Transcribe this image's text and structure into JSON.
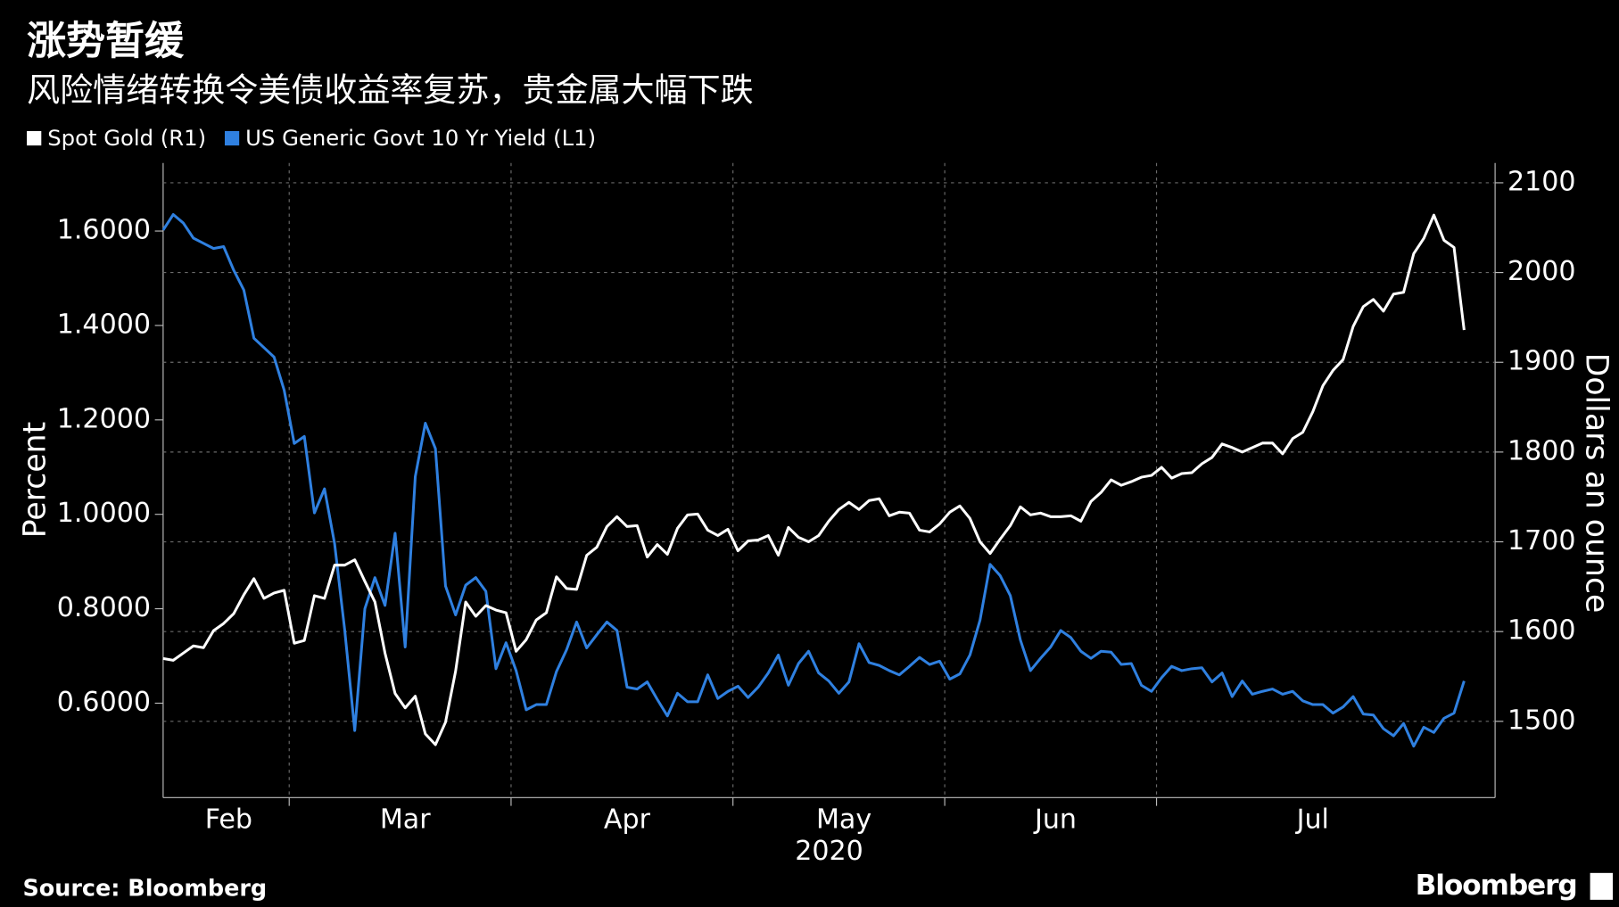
{
  "chart_data": {
    "type": "line",
    "title": "涨势暂缓",
    "subtitle": "风险情绪转换令美债收益率复苏，贵金属大幅下跌",
    "y_label": "Percent",
    "y2_label": "Dollars an ounce",
    "x_label": "2020",
    "source": "Source: Bloomberg",
    "brand": "Bloomberg",
    "grid": true,
    "categories": [
      "Feb",
      null,
      null,
      null,
      null,
      null,
      null,
      null,
      null,
      null,
      null,
      null,
      null,
      "Mar",
      null,
      null,
      null,
      null,
      null,
      null,
      null,
      null,
      null,
      null,
      null,
      null,
      null,
      null,
      null,
      null,
      null,
      null,
      null,
      null,
      null,
      "Apr",
      null,
      null,
      null,
      null,
      null,
      null,
      null,
      null,
      null,
      null,
      null,
      null,
      null,
      null,
      null,
      null,
      null,
      null,
      null,
      null,
      null,
      "May",
      null,
      null,
      null,
      null,
      null,
      null,
      null,
      null,
      null,
      null,
      null,
      null,
      null,
      null,
      null,
      null,
      null,
      null,
      null,
      null,
      "Jun",
      null,
      null,
      null,
      null,
      null,
      null,
      null,
      null,
      null,
      null,
      null,
      null,
      null,
      null,
      null,
      null,
      null,
      null,
      null,
      null,
      "Jul",
      null,
      null,
      null,
      null,
      null,
      null,
      null,
      null,
      null,
      null,
      null,
      null,
      null,
      null,
      null,
      null,
      null,
      null,
      null,
      null,
      null,
      null,
      null,
      null,
      null,
      null,
      null,
      null,
      null,
      null
    ],
    "series": [
      {
        "name": "Spot Gold (R1)",
        "color": "#ffffff",
        "axis": "y2",
        "values": [
          1570,
          1568,
          1576,
          1584,
          1582,
          1601,
          1609,
          1620,
          1641,
          1659,
          1637,
          1643,
          1646,
          1587,
          1590,
          1640,
          1637,
          1674,
          1674,
          1680,
          1656,
          1633,
          1576,
          1531,
          1515,
          1528,
          1486,
          1474,
          1499,
          1556,
          1633,
          1617,
          1629,
          1624,
          1621,
          1578,
          1591,
          1613,
          1621,
          1661,
          1648,
          1647,
          1685,
          1694,
          1717,
          1728,
          1717,
          1718,
          1683,
          1697,
          1686,
          1715,
          1730,
          1731,
          1713,
          1707,
          1714,
          1690,
          1701,
          1702,
          1707,
          1685,
          1716,
          1705,
          1700,
          1707,
          1723,
          1736,
          1744,
          1736,
          1746,
          1748,
          1729,
          1733,
          1732,
          1713,
          1711,
          1720,
          1733,
          1740,
          1726,
          1700,
          1687,
          1703,
          1718,
          1739,
          1730,
          1732,
          1728,
          1728,
          1729,
          1723,
          1745,
          1755,
          1769,
          1763,
          1767,
          1772,
          1774,
          1783,
          1771,
          1776,
          1777,
          1787,
          1794,
          1809,
          1805,
          1800,
          1805,
          1810,
          1810,
          1798,
          1815,
          1822,
          1845,
          1874,
          1891,
          1903,
          1940,
          1962,
          1970,
          1957,
          1976,
          1978,
          2021,
          2038,
          2064,
          2036,
          2028,
          1936
        ]
      },
      {
        "name": "US Generic Govt 10 Yr Yield (L1)",
        "color": "#2f80e0",
        "axis": "y",
        "values": [
          1.602,
          1.635,
          1.617,
          1.585,
          1.574,
          1.563,
          1.567,
          1.517,
          1.475,
          1.373,
          1.353,
          1.333,
          1.263,
          1.15,
          1.165,
          1.003,
          1.054,
          0.938,
          0.756,
          0.542,
          0.8,
          0.866,
          0.807,
          0.96,
          0.719,
          1.08,
          1.193,
          1.139,
          0.848,
          0.787,
          0.85,
          0.866,
          0.837,
          0.673,
          0.728,
          0.669,
          0.586,
          0.597,
          0.597,
          0.667,
          0.713,
          0.772,
          0.717,
          0.745,
          0.772,
          0.754,
          0.634,
          0.63,
          0.645,
          0.608,
          0.573,
          0.621,
          0.603,
          0.603,
          0.66,
          0.61,
          0.625,
          0.636,
          0.612,
          0.634,
          0.664,
          0.702,
          0.638,
          0.684,
          0.71,
          0.664,
          0.647,
          0.621,
          0.645,
          0.726,
          0.686,
          0.68,
          0.669,
          0.66,
          0.678,
          0.697,
          0.682,
          0.689,
          0.651,
          0.662,
          0.702,
          0.776,
          0.894,
          0.87,
          0.828,
          0.734,
          0.669,
          0.695,
          0.719,
          0.754,
          0.739,
          0.71,
          0.695,
          0.71,
          0.708,
          0.682,
          0.684,
          0.638,
          0.625,
          0.654,
          0.678,
          0.669,
          0.673,
          0.675,
          0.645,
          0.664,
          0.614,
          0.647,
          0.619,
          0.625,
          0.63,
          0.619,
          0.625,
          0.605,
          0.597,
          0.597,
          0.579,
          0.592,
          0.614,
          0.577,
          0.575,
          0.546,
          0.531,
          0.557,
          0.509,
          0.549,
          0.538,
          0.568,
          0.579,
          0.647
        ]
      }
    ],
    "ylim": [
      0.4,
      1.744
    ],
    "yticks": [
      {
        "value": 0.6,
        "label": "0.6000"
      },
      {
        "value": 0.8,
        "label": "0.8000"
      },
      {
        "value": 1.0,
        "label": "1.0000"
      },
      {
        "value": 1.2,
        "label": "1.2000"
      },
      {
        "value": 1.4,
        "label": "1.4000"
      },
      {
        "value": 1.6,
        "label": "1.6000"
      }
    ],
    "y2lim": [
      1415,
      2122
    ],
    "y2ticks": [
      1500,
      1600,
      1700,
      1800,
      1900,
      2000,
      2100
    ]
  }
}
